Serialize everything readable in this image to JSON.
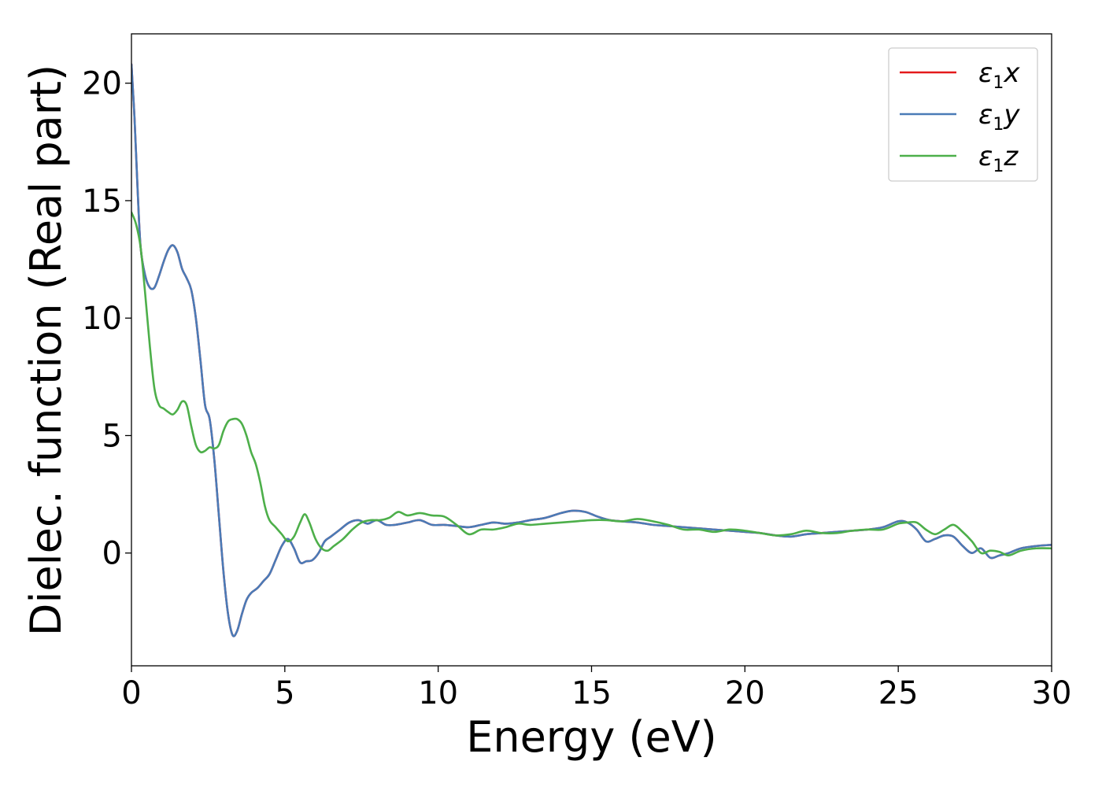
{
  "chart_data": {
    "type": "line",
    "title": "",
    "xlabel": "Energy (eV)",
    "ylabel": "Dielec. function (Real part)",
    "xlim": [
      0,
      30
    ],
    "ylim": [
      -4.8,
      22.1
    ],
    "xticks": [
      0,
      5,
      10,
      15,
      20,
      25,
      30
    ],
    "yticks": [
      0,
      5,
      10,
      15,
      20
    ],
    "grid": false,
    "legend_position": "top-right",
    "series": [
      {
        "name": "ε1x",
        "legend": {
          "base": "ε",
          "sub": "1",
          "suffix": "x"
        },
        "color": "#e41a1c",
        "x": [
          0,
          0.1,
          0.2,
          0.3,
          0.45,
          0.6,
          0.75,
          0.9,
          1.05,
          1.2,
          1.35,
          1.5,
          1.65,
          1.8,
          1.95,
          2.1,
          2.25,
          2.4,
          2.55,
          2.7,
          2.85,
          3.0,
          3.15,
          3.3,
          3.45,
          3.6,
          3.75,
          3.9,
          4.1,
          4.3,
          4.5,
          4.7,
          4.9,
          5.1,
          5.3,
          5.5,
          5.7,
          5.9,
          6.1,
          6.3,
          6.5,
          6.8,
          7.1,
          7.4,
          7.7,
          8.0,
          8.3,
          8.6,
          9.0,
          9.4,
          9.8,
          10.2,
          10.6,
          11.0,
          11.4,
          11.8,
          12.2,
          12.6,
          13.0,
          13.5,
          14.0,
          14.4,
          14.8,
          15.2,
          15.6,
          16.0,
          16.5,
          17.0,
          17.5,
          18.0,
          18.5,
          19.0,
          19.5,
          20.0,
          20.5,
          21.0,
          21.5,
          22.0,
          22.5,
          23.0,
          23.5,
          24.0,
          24.5,
          25.0,
          25.3,
          25.6,
          25.9,
          26.2,
          26.5,
          26.8,
          27.1,
          27.4,
          27.7,
          28.0,
          28.3,
          28.6,
          29.0,
          29.5,
          30.0
        ],
        "y": [
          20.8,
          18.5,
          15.5,
          13.0,
          11.8,
          11.3,
          11.3,
          11.8,
          12.4,
          12.9,
          13.1,
          12.8,
          12.1,
          11.7,
          11.2,
          10.0,
          8.2,
          6.3,
          5.7,
          4.0,
          1.6,
          -0.8,
          -2.6,
          -3.5,
          -3.3,
          -2.6,
          -2.0,
          -1.7,
          -1.5,
          -1.2,
          -0.9,
          -0.3,
          0.3,
          0.6,
          0.2,
          -0.4,
          -0.35,
          -0.3,
          0.0,
          0.5,
          0.7,
          1.0,
          1.3,
          1.4,
          1.25,
          1.4,
          1.2,
          1.2,
          1.3,
          1.4,
          1.2,
          1.2,
          1.15,
          1.1,
          1.2,
          1.3,
          1.25,
          1.3,
          1.4,
          1.5,
          1.7,
          1.8,
          1.75,
          1.55,
          1.4,
          1.35,
          1.3,
          1.2,
          1.15,
          1.1,
          1.05,
          1.0,
          0.95,
          0.9,
          0.85,
          0.75,
          0.7,
          0.8,
          0.85,
          0.9,
          0.95,
          1.0,
          1.1,
          1.35,
          1.3,
          1.0,
          0.5,
          0.6,
          0.75,
          0.7,
          0.3,
          0.0,
          0.2,
          -0.2,
          -0.1,
          0.0,
          0.2,
          0.3,
          0.35
        ]
      },
      {
        "name": "ε1y",
        "legend": {
          "base": "ε",
          "sub": "1",
          "suffix": "y"
        },
        "color": "#4a7bb7",
        "x": [
          0,
          0.1,
          0.2,
          0.3,
          0.45,
          0.6,
          0.75,
          0.9,
          1.05,
          1.2,
          1.35,
          1.5,
          1.65,
          1.8,
          1.95,
          2.1,
          2.25,
          2.4,
          2.55,
          2.7,
          2.85,
          3.0,
          3.15,
          3.3,
          3.45,
          3.6,
          3.75,
          3.9,
          4.1,
          4.3,
          4.5,
          4.7,
          4.9,
          5.1,
          5.3,
          5.5,
          5.7,
          5.9,
          6.1,
          6.3,
          6.5,
          6.8,
          7.1,
          7.4,
          7.7,
          8.0,
          8.3,
          8.6,
          9.0,
          9.4,
          9.8,
          10.2,
          10.6,
          11.0,
          11.4,
          11.8,
          12.2,
          12.6,
          13.0,
          13.5,
          14.0,
          14.4,
          14.8,
          15.2,
          15.6,
          16.0,
          16.5,
          17.0,
          17.5,
          18.0,
          18.5,
          19.0,
          19.5,
          20.0,
          20.5,
          21.0,
          21.5,
          22.0,
          22.5,
          23.0,
          23.5,
          24.0,
          24.5,
          25.0,
          25.3,
          25.6,
          25.9,
          26.2,
          26.5,
          26.8,
          27.1,
          27.4,
          27.7,
          28.0,
          28.3,
          28.6,
          29.0,
          29.5,
          30.0
        ],
        "y": [
          20.8,
          18.5,
          15.5,
          13.0,
          11.8,
          11.3,
          11.3,
          11.8,
          12.4,
          12.9,
          13.1,
          12.8,
          12.1,
          11.7,
          11.2,
          10.0,
          8.2,
          6.3,
          5.7,
          4.0,
          1.6,
          -0.8,
          -2.6,
          -3.5,
          -3.3,
          -2.6,
          -2.0,
          -1.7,
          -1.5,
          -1.2,
          -0.9,
          -0.3,
          0.3,
          0.6,
          0.2,
          -0.4,
          -0.35,
          -0.3,
          0.0,
          0.5,
          0.7,
          1.0,
          1.3,
          1.4,
          1.25,
          1.4,
          1.2,
          1.2,
          1.3,
          1.4,
          1.2,
          1.2,
          1.15,
          1.1,
          1.2,
          1.3,
          1.25,
          1.3,
          1.4,
          1.5,
          1.7,
          1.8,
          1.75,
          1.55,
          1.4,
          1.35,
          1.3,
          1.2,
          1.15,
          1.1,
          1.05,
          1.0,
          0.95,
          0.9,
          0.85,
          0.75,
          0.7,
          0.8,
          0.85,
          0.9,
          0.95,
          1.0,
          1.1,
          1.35,
          1.3,
          1.0,
          0.5,
          0.6,
          0.75,
          0.7,
          0.3,
          0.0,
          0.2,
          -0.2,
          -0.1,
          0.0,
          0.2,
          0.3,
          0.35
        ]
      },
      {
        "name": "ε1z",
        "legend": {
          "base": "ε",
          "sub": "1",
          "suffix": "z"
        },
        "color": "#4daf4a",
        "x": [
          0,
          0.15,
          0.3,
          0.45,
          0.6,
          0.75,
          0.9,
          1.05,
          1.2,
          1.35,
          1.5,
          1.65,
          1.8,
          1.95,
          2.1,
          2.25,
          2.4,
          2.55,
          2.7,
          2.85,
          3.0,
          3.15,
          3.3,
          3.45,
          3.6,
          3.75,
          3.9,
          4.05,
          4.2,
          4.35,
          4.5,
          4.7,
          4.9,
          5.1,
          5.3,
          5.5,
          5.65,
          5.8,
          6.0,
          6.2,
          6.4,
          6.6,
          6.9,
          7.2,
          7.5,
          7.8,
          8.1,
          8.4,
          8.7,
          9.0,
          9.4,
          9.8,
          10.2,
          10.6,
          11.0,
          11.4,
          11.8,
          12.2,
          12.6,
          13.0,
          13.5,
          14.0,
          14.5,
          15.0,
          15.5,
          16.0,
          16.5,
          17.0,
          17.5,
          18.0,
          18.5,
          19.0,
          19.5,
          20.0,
          20.5,
          21.0,
          21.5,
          22.0,
          22.5,
          23.0,
          23.5,
          24.0,
          24.5,
          25.0,
          25.3,
          25.6,
          25.9,
          26.2,
          26.5,
          26.8,
          27.1,
          27.4,
          27.7,
          28.0,
          28.3,
          28.6,
          29.0,
          29.5,
          30.0
        ],
        "y": [
          14.5,
          14.0,
          13.0,
          11.0,
          8.8,
          7.0,
          6.3,
          6.15,
          6.0,
          5.9,
          6.1,
          6.45,
          6.3,
          5.4,
          4.6,
          4.3,
          4.35,
          4.5,
          4.45,
          4.6,
          5.2,
          5.6,
          5.7,
          5.7,
          5.5,
          5.0,
          4.3,
          3.8,
          3.0,
          2.0,
          1.4,
          1.1,
          0.8,
          0.5,
          0.7,
          1.3,
          1.65,
          1.3,
          0.6,
          0.2,
          0.1,
          0.3,
          0.6,
          1.0,
          1.3,
          1.4,
          1.4,
          1.5,
          1.75,
          1.6,
          1.7,
          1.6,
          1.55,
          1.2,
          0.8,
          1.0,
          1.0,
          1.1,
          1.25,
          1.2,
          1.25,
          1.3,
          1.35,
          1.4,
          1.4,
          1.35,
          1.45,
          1.35,
          1.2,
          1.0,
          1.0,
          0.9,
          1.0,
          0.95,
          0.85,
          0.75,
          0.8,
          0.95,
          0.85,
          0.85,
          0.95,
          1.0,
          1.0,
          1.25,
          1.3,
          1.3,
          1.0,
          0.8,
          1.0,
          1.2,
          0.9,
          0.5,
          0.0,
          0.1,
          0.05,
          -0.1,
          0.1,
          0.2,
          0.2
        ]
      }
    ]
  }
}
